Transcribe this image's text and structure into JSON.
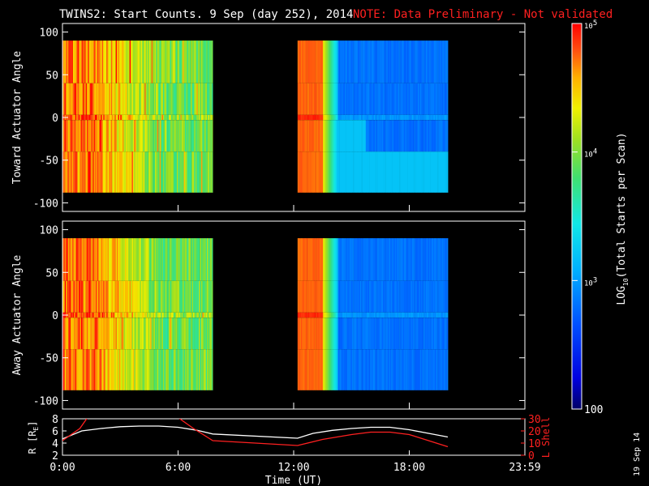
{
  "header": {
    "title": "TWINS2: Start Counts.  9 Sep (day 252), 2014",
    "note": "NOTE: Data Preliminary - Not validated"
  },
  "side_label": "19 Sep 14",
  "chart_data": [
    {
      "type": "heatmap",
      "panel": "toward",
      "ylabel": "Toward Actuator Angle",
      "ylim": [
        -110,
        110
      ],
      "yticks": [
        100,
        50,
        0,
        -50,
        -100
      ],
      "xlim": [
        0,
        24
      ],
      "data_segments_hours": [
        [
          0.0,
          7.8
        ],
        [
          12.2,
          20.0
        ]
      ],
      "angle_range": [
        -88,
        90
      ],
      "colorscale": "log"
    },
    {
      "type": "heatmap",
      "panel": "away",
      "ylabel": "Away Actuator Angle",
      "ylim": [
        -110,
        110
      ],
      "yticks": [
        100,
        50,
        0,
        -50,
        -100
      ],
      "xlim": [
        0,
        24
      ],
      "data_segments_hours": [
        [
          0.0,
          7.8
        ],
        [
          12.2,
          20.0
        ]
      ],
      "angle_range": [
        -88,
        90
      ],
      "colorscale": "log"
    },
    {
      "type": "line",
      "panel": "orbit",
      "xlabel": "Time (UT)",
      "xticks": [
        "0:00",
        "6:00",
        "12:00",
        "18:00",
        "23:59"
      ],
      "xlim": [
        0,
        24
      ],
      "ylabel_left": "R [RE]",
      "ylim_left": [
        2,
        8
      ],
      "yticks_left": [
        2,
        4,
        6,
        8
      ],
      "ylabel_right": "L Shell",
      "ylim_right": [
        0,
        30
      ],
      "yticks_right": [
        0,
        10,
        20,
        30
      ],
      "series": [
        {
          "name": "R [RE]",
          "color": "#ffffff",
          "axis": "left",
          "x": [
            0,
            1,
            2,
            3,
            4,
            5,
            6,
            7,
            7.8,
            12.2,
            13,
            14,
            15,
            16,
            17,
            18,
            19,
            20
          ],
          "y": [
            4.7,
            6.0,
            6.4,
            6.7,
            6.8,
            6.8,
            6.6,
            6.1,
            5.5,
            4.8,
            5.6,
            6.1,
            6.4,
            6.6,
            6.6,
            6.2,
            5.6,
            5.0
          ]
        },
        {
          "name": "L Shell",
          "color": "#ff2020",
          "axis": "right",
          "x": [
            0,
            0.9,
            1.3,
            6.0,
            6.8,
            7.8,
            12.2,
            13.5,
            15,
            16,
            17,
            18,
            19,
            20
          ],
          "y": [
            12,
            22,
            31,
            31,
            22,
            12,
            8,
            13,
            17,
            19,
            19,
            17,
            12,
            7
          ]
        }
      ]
    }
  ],
  "colorbar": {
    "label": "LOG10(Total Starts per Scan)",
    "label_base": "LOG",
    "label_sub": "10",
    "label_rest": "(Total Starts per Scan)",
    "scale": "log",
    "range": [
      100,
      100000
    ],
    "ticks": [
      {
        "value": 100000,
        "base": "10",
        "exp": "5"
      },
      {
        "value": 10000,
        "base": "10",
        "exp": "4"
      },
      {
        "value": 1000,
        "base": "10",
        "exp": "3"
      },
      {
        "value": 100,
        "base": "100",
        "exp": ""
      }
    ]
  },
  "ytick_labels": [
    "100",
    "50",
    "0",
    "-50",
    "-100"
  ],
  "orbit_left_ticks": [
    "8",
    "6",
    "4",
    "2"
  ],
  "orbit_right_ticks": [
    "30",
    "20",
    "10",
    "0"
  ],
  "orbit_left_label": {
    "base": "R [R",
    "sub": "E",
    "close": "]"
  },
  "colors": {
    "note": "#ff2020",
    "background": "#000000",
    "axes": "#ffffff"
  }
}
